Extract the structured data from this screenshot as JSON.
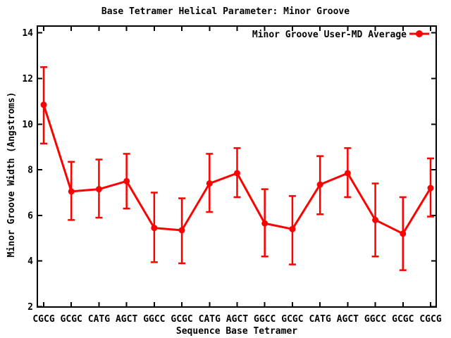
{
  "chart_data": {
    "type": "line",
    "title": "Base Tetramer Helical Parameter: Minor Groove",
    "xlabel": "Sequence Base Tetramer",
    "ylabel": "Minor Groove Width (Angstroms)",
    "ylim": [
      2,
      14.3
    ],
    "yticks": [
      2,
      4,
      6,
      8,
      10,
      12,
      14
    ],
    "grid": false,
    "legend_position": "top-right-inside",
    "background_color": "#ffffff",
    "frame_color": "#000000",
    "categories": [
      "CGCG",
      "GCGC",
      "CATG",
      "AGCT",
      "GGCC",
      "GCGC",
      "CATG",
      "AGCT",
      "GGCC",
      "GCGC",
      "CATG",
      "AGCT",
      "GGCC",
      "GCGC",
      "CGCG"
    ],
    "series": [
      {
        "name": "Minor Groove User-MD Average",
        "color": "#ff0000",
        "marker": "filled-circle",
        "values": [
          10.85,
          7.05,
          7.15,
          7.5,
          5.45,
          5.35,
          7.4,
          7.85,
          5.65,
          5.4,
          7.35,
          7.85,
          5.8,
          5.2,
          7.2
        ],
        "err_high": [
          12.5,
          8.35,
          8.45,
          8.7,
          7.0,
          6.75,
          8.7,
          8.95,
          7.15,
          6.85,
          8.6,
          8.95,
          7.4,
          6.8,
          8.5
        ],
        "err_low": [
          9.15,
          5.8,
          5.9,
          6.3,
          3.95,
          3.9,
          6.15,
          6.8,
          4.2,
          3.85,
          6.05,
          6.8,
          4.2,
          3.6,
          5.95
        ]
      }
    ]
  }
}
